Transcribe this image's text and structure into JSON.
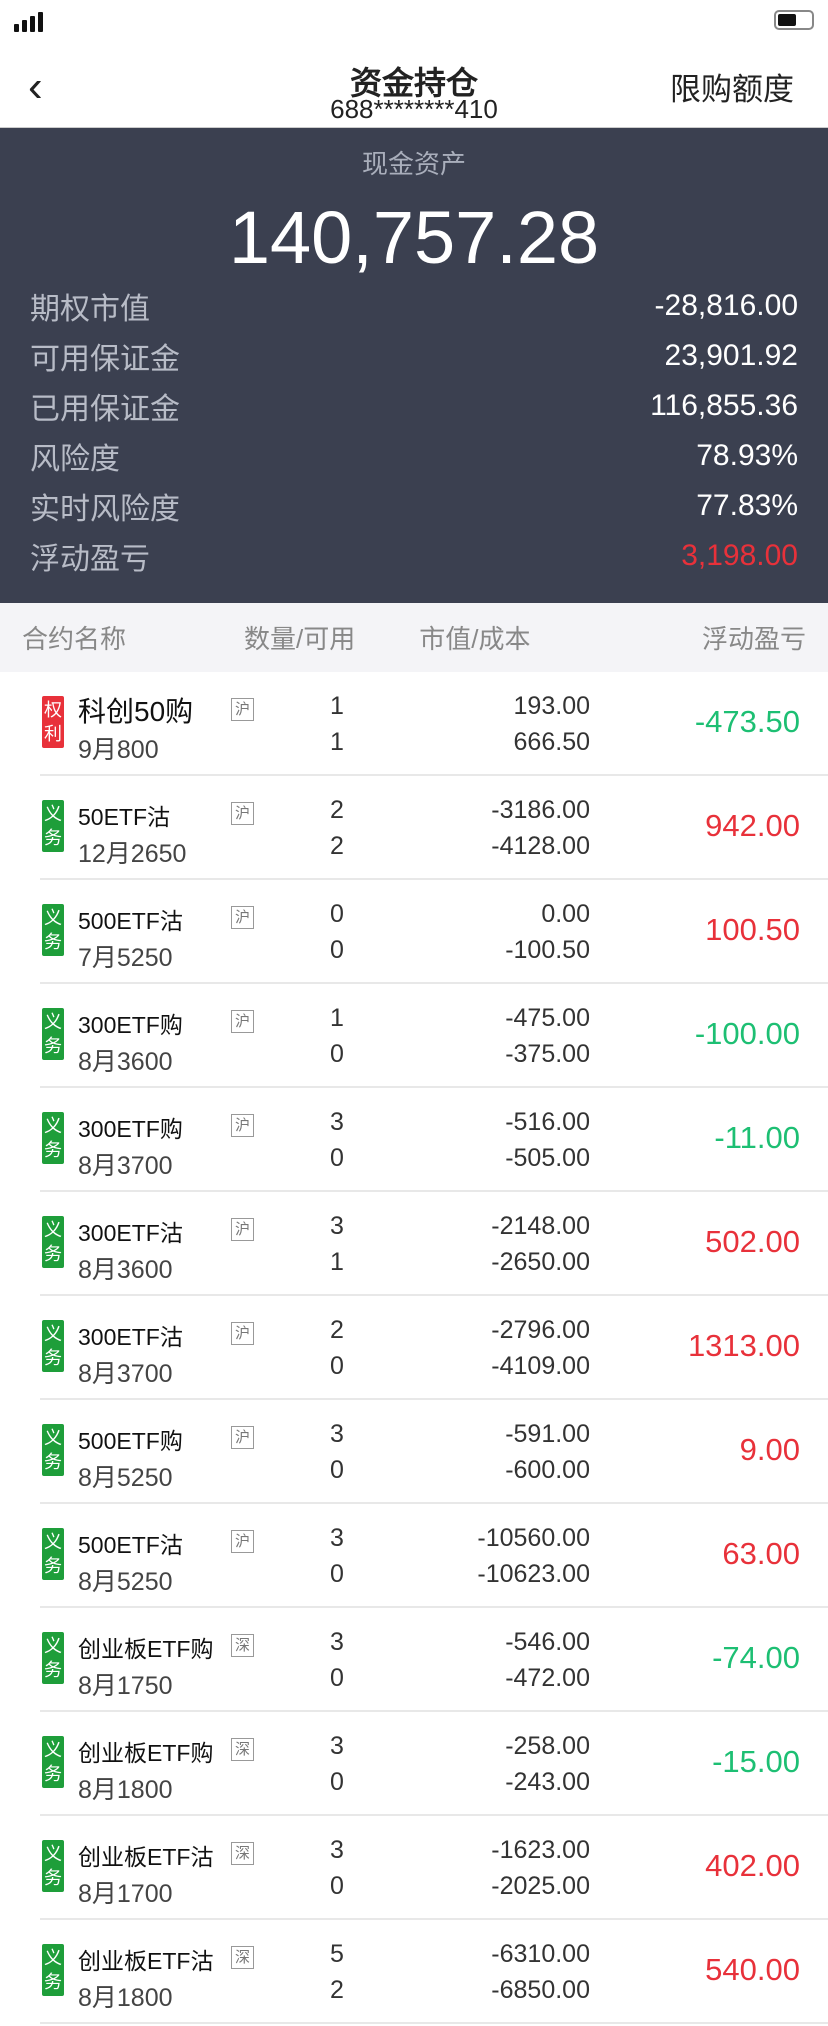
{
  "nav": {
    "title": "资金持仓",
    "account": "688********410",
    "limit_button": "限购额度"
  },
  "summary": {
    "cash_label": "现金资产",
    "cash_value": "140,757.28",
    "items": [
      {
        "label": "期权市值",
        "value": "-28,816.00",
        "color": "#ffffff"
      },
      {
        "label": "可用保证金",
        "value": "23,901.92",
        "color": "#ffffff"
      },
      {
        "label": "已用保证金",
        "value": "116,855.36",
        "color": "#ffffff"
      },
      {
        "label": "风险度",
        "value": "78.93%",
        "color": "#ffffff"
      },
      {
        "label": "实时风险度",
        "value": "77.83%",
        "color": "#ffffff"
      },
      {
        "label": "浮动盈亏",
        "value": "3,198.00",
        "color": "#e8313a"
      }
    ]
  },
  "columns": [
    "合约名称",
    "数量/可用",
    "市值/成本",
    "浮动盈亏"
  ],
  "colors": {
    "red": "#e8313a",
    "green": "#1dbf73",
    "panel": "#3b4050"
  },
  "positions": [
    {
      "tag": "权利",
      "tag_color": "#e8313a",
      "name": "科创50购",
      "expiry": "9月800",
      "exchange": "沪",
      "qty": "1",
      "avail": "1",
      "value": "193.00",
      "cost": "666.50",
      "pnl": "-473.50",
      "pnl_color": "#1dbf73"
    },
    {
      "tag": "义务",
      "tag_color": "#1e9e3a",
      "name": "50ETF沽",
      "expiry": "12月2650",
      "exchange": "沪",
      "qty": "2",
      "avail": "2",
      "value": "-3186.00",
      "cost": "-4128.00",
      "pnl": "942.00",
      "pnl_color": "#e8313a"
    },
    {
      "tag": "义务",
      "tag_color": "#1e9e3a",
      "name": "500ETF沽",
      "expiry": "7月5250",
      "exchange": "沪",
      "qty": "0",
      "avail": "0",
      "value": "0.00",
      "cost": "-100.50",
      "pnl": "100.50",
      "pnl_color": "#e8313a"
    },
    {
      "tag": "义务",
      "tag_color": "#1e9e3a",
      "name": "300ETF购",
      "expiry": "8月3600",
      "exchange": "沪",
      "qty": "1",
      "avail": "0",
      "value": "-475.00",
      "cost": "-375.00",
      "pnl": "-100.00",
      "pnl_color": "#1dbf73"
    },
    {
      "tag": "义务",
      "tag_color": "#1e9e3a",
      "name": "300ETF购",
      "expiry": "8月3700",
      "exchange": "沪",
      "qty": "3",
      "avail": "0",
      "value": "-516.00",
      "cost": "-505.00",
      "pnl": "-11.00",
      "pnl_color": "#1dbf73"
    },
    {
      "tag": "义务",
      "tag_color": "#1e9e3a",
      "name": "300ETF沽",
      "expiry": "8月3600",
      "exchange": "沪",
      "qty": "3",
      "avail": "1",
      "value": "-2148.00",
      "cost": "-2650.00",
      "pnl": "502.00",
      "pnl_color": "#e8313a"
    },
    {
      "tag": "义务",
      "tag_color": "#1e9e3a",
      "name": "300ETF沽",
      "expiry": "8月3700",
      "exchange": "沪",
      "qty": "2",
      "avail": "0",
      "value": "-2796.00",
      "cost": "-4109.00",
      "pnl": "1313.00",
      "pnl_color": "#e8313a"
    },
    {
      "tag": "义务",
      "tag_color": "#1e9e3a",
      "name": "500ETF购",
      "expiry": "8月5250",
      "exchange": "沪",
      "qty": "3",
      "avail": "0",
      "value": "-591.00",
      "cost": "-600.00",
      "pnl": "9.00",
      "pnl_color": "#e8313a"
    },
    {
      "tag": "义务",
      "tag_color": "#1e9e3a",
      "name": "500ETF沽",
      "expiry": "8月5250",
      "exchange": "沪",
      "qty": "3",
      "avail": "0",
      "value": "-10560.00",
      "cost": "-10623.00",
      "pnl": "63.00",
      "pnl_color": "#e8313a"
    },
    {
      "tag": "义务",
      "tag_color": "#1e9e3a",
      "name": "创业板ETF购",
      "expiry": "8月1750",
      "exchange": "深",
      "qty": "3",
      "avail": "0",
      "value": "-546.00",
      "cost": "-472.00",
      "pnl": "-74.00",
      "pnl_color": "#1dbf73"
    },
    {
      "tag": "义务",
      "tag_color": "#1e9e3a",
      "name": "创业板ETF购",
      "expiry": "8月1800",
      "exchange": "深",
      "qty": "3",
      "avail": "0",
      "value": "-258.00",
      "cost": "-243.00",
      "pnl": "-15.00",
      "pnl_color": "#1dbf73"
    },
    {
      "tag": "义务",
      "tag_color": "#1e9e3a",
      "name": "创业板ETF沽",
      "expiry": "8月1700",
      "exchange": "深",
      "qty": "3",
      "avail": "0",
      "value": "-1623.00",
      "cost": "-2025.00",
      "pnl": "402.00",
      "pnl_color": "#e8313a"
    },
    {
      "tag": "义务",
      "tag_color": "#1e9e3a",
      "name": "创业板ETF沽",
      "expiry": "8月1800",
      "exchange": "深",
      "qty": "5",
      "avail": "2",
      "value": "-6310.00",
      "cost": "-6850.00",
      "pnl": "540.00",
      "pnl_color": "#e8313a"
    }
  ]
}
